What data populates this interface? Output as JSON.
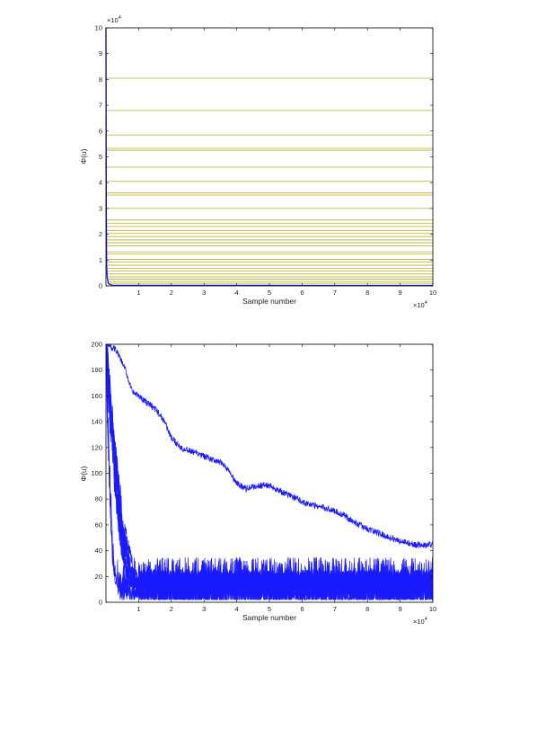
{
  "chart_data": [
    {
      "type": "line",
      "title": "",
      "xlabel": "Sample number",
      "ylabel": "Φ(u)",
      "xlim": [
        0,
        100000
      ],
      "ylim": [
        0,
        100000
      ],
      "x_ticks": [
        1,
        2,
        3,
        4,
        5,
        6,
        7,
        8,
        9,
        10
      ],
      "y_ticks": [
        0,
        1,
        2,
        3,
        4,
        5,
        6,
        7,
        8,
        9,
        10
      ],
      "x_multiplier": "×10",
      "x_multiplier_exp": "4",
      "y_multiplier": "×10",
      "y_multiplier_exp": "4",
      "grid": false,
      "series_colors": {
        "reference_levels": "#b5b022",
        "trace": "#1a1aff"
      },
      "reference_levels": [
        80500,
        68000,
        58500,
        53300,
        52600,
        46000,
        40500,
        36000,
        35200,
        30000,
        25500,
        24300,
        23000,
        21500,
        20300,
        19100,
        17800,
        16700,
        15500,
        13200,
        12400,
        10300,
        9200,
        8000,
        6800,
        5700,
        4600,
        3500,
        2600,
        1700,
        1000
      ],
      "trace": {
        "description_points": [
          [
            0,
            100000
          ],
          [
            100,
            30000
          ],
          [
            200,
            8000
          ],
          [
            400,
            3000
          ],
          [
            800,
            800
          ],
          [
            2000,
            200
          ],
          [
            100000,
            20
          ]
        ]
      }
    },
    {
      "type": "line",
      "title": "",
      "xlabel": "Sample number",
      "ylabel": "Φ(u)",
      "xlim": [
        0,
        100000
      ],
      "ylim": [
        0,
        200
      ],
      "x_ticks": [
        1,
        2,
        3,
        4,
        5,
        6,
        7,
        8,
        9,
        10
      ],
      "y_ticks": [
        0,
        20,
        40,
        60,
        80,
        100,
        120,
        140,
        160,
        180,
        200
      ],
      "x_multiplier": "×10",
      "x_multiplier_exp": "4",
      "grid": false,
      "series_color": "#1a1aff",
      "slow_chain": {
        "x": [
          0,
          3000,
          6000,
          8000,
          10000,
          12000,
          15000,
          18000,
          20000,
          23000,
          26000,
          30000,
          33000,
          36000,
          38000,
          40000,
          43000,
          46000,
          49000,
          52000,
          55000,
          58000,
          61000,
          64000,
          67000,
          70000,
          73000,
          76000,
          79000,
          82000,
          85000,
          88000,
          91000,
          94000,
          97000,
          100000
        ],
        "y": [
          200,
          196,
          180,
          163,
          160,
          156,
          150,
          140,
          127,
          120,
          117,
          113,
          110,
          107,
          100,
          92,
          88,
          90,
          91,
          88,
          84,
          81,
          77,
          75,
          73,
          71,
          67,
          62,
          58,
          55,
          52,
          49,
          47,
          45,
          44,
          45
        ]
      },
      "fast_chains": {
        "start": 200,
        "plateau_min": 5,
        "plateau_max": 35,
        "settle_x": 12000
      }
    }
  ]
}
